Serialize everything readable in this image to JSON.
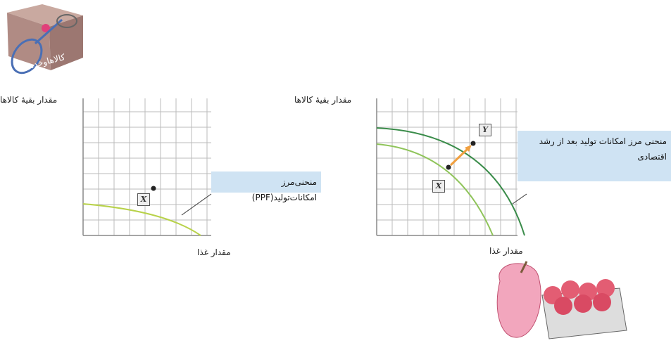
{
  "illustration_label": "کالاهاوخدمات",
  "left_graph": {
    "y_axis_label": "مقدار بقیهٔ کالاها",
    "x_axis_label": "مقدار غذا",
    "point_label": "X",
    "curve_label": "منحنی‌مرز امکانات‌تولید(PPF)"
  },
  "right_graph": {
    "y_axis_label": "مقدار بقیهٔ کالاها",
    "x_axis_label": "مقدار غذا",
    "point_x_label": "X",
    "point_y_label": "Y",
    "curve_label": "منحنی مرز امکانات تولید بعد از رشد اقتصادی"
  }
}
